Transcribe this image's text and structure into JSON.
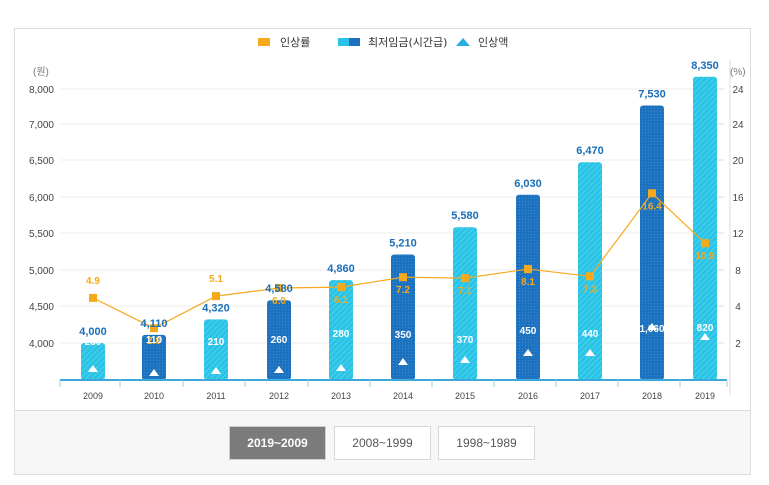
{
  "legend": {
    "rate_label": "인상률",
    "wage_label": "최저임금(시간급)",
    "increase_label": "인상액"
  },
  "axis": {
    "left_unit": "(원)",
    "right_unit": "(%)",
    "left_ticks": [
      "8,000",
      "7,000",
      "6,500",
      "6,000",
      "5,500",
      "5,000",
      "4,500",
      "4,000"
    ],
    "right_ticks": [
      "24",
      "24",
      "20",
      "16",
      "12",
      "8",
      "4",
      "2"
    ]
  },
  "colors": {
    "bar_light": "#29c3e6",
    "bar_dark": "#1d72bf",
    "rate_line": "#f5a91b",
    "value_label": "#1a6fb8"
  },
  "range_buttons": [
    {
      "label": "2019~2009",
      "active": true
    },
    {
      "label": "2008~1999",
      "active": false
    },
    {
      "label": "1998~1989",
      "active": false
    }
  ],
  "chart_data": {
    "type": "bar",
    "title": "",
    "xlabel": "",
    "ylabel": "(원)",
    "y2label": "(%)",
    "categories": [
      "2009",
      "2010",
      "2011",
      "2012",
      "2013",
      "2014",
      "2015",
      "2016",
      "2017",
      "2018",
      "2019"
    ],
    "series": [
      {
        "name": "최저임금(시간급)",
        "kind": "bar",
        "axis": "left",
        "values": [
          4000,
          4110,
          4320,
          4580,
          4860,
          5210,
          5580,
          6030,
          6470,
          7530,
          8350
        ],
        "labels": [
          "4,000",
          "4,110",
          "4,320",
          "4,580",
          "4,860",
          "5,210",
          "5,580",
          "6,030",
          "6,470",
          "7,530",
          "8,350"
        ],
        "styles": [
          "light",
          "dark",
          "light",
          "dark",
          "light",
          "dark",
          "light",
          "dark",
          "light",
          "dark",
          "light"
        ]
      },
      {
        "name": "인상액",
        "kind": "marker",
        "axis": "left",
        "values": [
          230,
          110,
          210,
          260,
          280,
          350,
          370,
          450,
          440,
          1060,
          820
        ],
        "labels": [
          "230",
          "110",
          "210",
          "260",
          "280",
          "350",
          "370",
          "450",
          "440",
          "1,060",
          "820"
        ]
      },
      {
        "name": "인상률",
        "kind": "line",
        "axis": "right",
        "values": [
          4.9,
          2.8,
          5.1,
          6.0,
          6.1,
          7.2,
          7.1,
          8.1,
          7.3,
          16.4,
          10.9
        ],
        "labels": [
          "4.9",
          "2.8",
          "5.1",
          "6.0",
          "6.1",
          "7.2",
          "7.1",
          "8.1",
          "7.3",
          "16.4",
          "10.9"
        ]
      }
    ],
    "left_axis_ticks": [
      8000,
      7000,
      6500,
      6000,
      5500,
      5000,
      4500,
      4000
    ],
    "right_axis_ticks": [
      24,
      24,
      20,
      16,
      12,
      8,
      4,
      2
    ],
    "grid": true,
    "legend_position": "top-center"
  }
}
